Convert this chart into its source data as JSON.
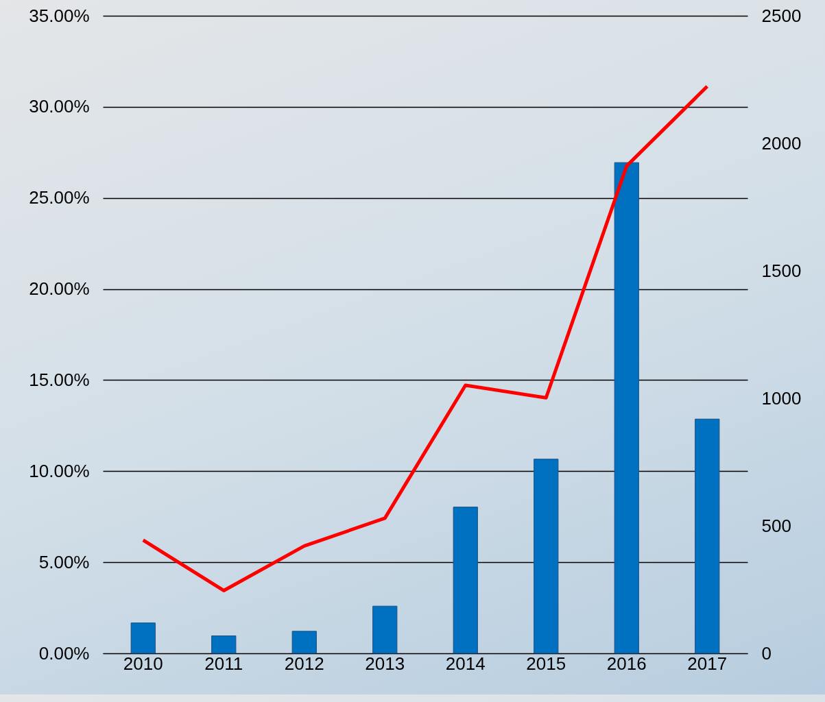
{
  "chart_data": {
    "type": "bar",
    "categories": [
      "2010",
      "2011",
      "2012",
      "2013",
      "2014",
      "2015",
      "2016",
      "2017"
    ],
    "series": [
      {
        "color": "#0070c0",
        "values": [
          1.67,
          0.96,
          1.21,
          2.59,
          8.03,
          10.66,
          26.94,
          12.86
        ]
      },
      {
        "type": "line",
        "axis": "y2",
        "color": "#ff0000",
        "values": [
          444,
          246,
          421,
          530,
          1051,
          1002,
          1911,
          2223
        ]
      }
    ],
    "ylim": [
      0,
      35
    ],
    "yticks": [
      {
        "value": 0,
        "label": "0.00%"
      },
      {
        "value": 5,
        "label": "5.00%"
      },
      {
        "value": 10,
        "label": "10.00%"
      },
      {
        "value": 15,
        "label": "15.00%"
      },
      {
        "value": 20,
        "label": "20.00%"
      },
      {
        "value": 25,
        "label": "25.00%"
      },
      {
        "value": 30,
        "label": "30.00%"
      },
      {
        "value": 35,
        "label": "35.00%"
      }
    ],
    "y2lim": [
      0,
      2500
    ],
    "y2ticks": [
      0,
      500,
      1000,
      1500,
      2000,
      2500
    ],
    "grid": "y",
    "marker": "none",
    "line_style": "solid"
  }
}
